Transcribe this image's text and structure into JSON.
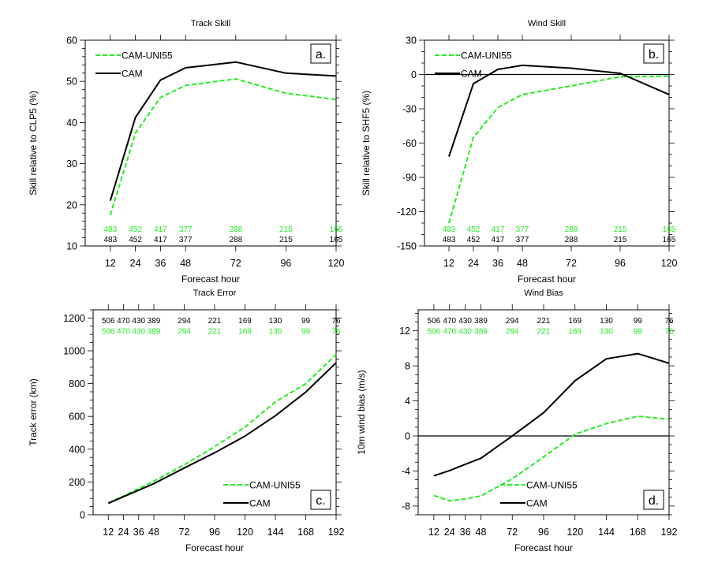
{
  "colors": {
    "cam": "#000000",
    "uni55": "#22ee22",
    "axis": "#000000"
  },
  "chart_data": [
    {
      "id": "a",
      "type": "line",
      "title": "Track Skill",
      "xlabel": "Forecast hour",
      "ylabel": "Skill relative to CLP5 (%)",
      "panel_label": "a.",
      "xlim": [
        0,
        120
      ],
      "ylim": [
        10,
        60
      ],
      "xticks": [
        12,
        24,
        36,
        48,
        72,
        96,
        120
      ],
      "yticks": [
        10,
        20,
        30,
        40,
        50,
        60
      ],
      "yminor": 2,
      "zero_line": false,
      "legend": {
        "position": "top-left",
        "entries": [
          "CAM-UNI55",
          "CAM"
        ]
      },
      "x": [
        12,
        24,
        36,
        48,
        72,
        96,
        120
      ],
      "series": [
        {
          "name": "CAM-UNI55",
          "style": "dashed",
          "values": [
            17.5,
            37.4,
            46.1,
            49.0,
            50.6,
            47.1,
            45.6
          ]
        },
        {
          "name": "CAM",
          "style": "solid",
          "values": [
            21.0,
            41.2,
            50.3,
            53.3,
            54.7,
            52.0,
            51.3
          ]
        }
      ],
      "counts": {
        "position": "bottom",
        "rows": [
          {
            "series": "CAM-UNI55",
            "values": [
              "483",
              "452",
              "417",
              "377",
              "288",
              "215",
              "165"
            ]
          },
          {
            "series": "CAM",
            "values": [
              "483",
              "452",
              "417",
              "377",
              "288",
              "215",
              "165"
            ]
          }
        ]
      }
    },
    {
      "id": "b",
      "type": "line",
      "title": "Wind Skill",
      "xlabel": "Forecast hour",
      "ylabel": "Skill relative to SHF5 (%)",
      "panel_label": "b.",
      "xlim": [
        0,
        120
      ],
      "ylim": [
        -150,
        30
      ],
      "xticks": [
        12,
        24,
        36,
        48,
        72,
        96,
        120
      ],
      "yticks": [
        -150,
        -120,
        -90,
        -60,
        -30,
        0,
        30
      ],
      "yminor": 10,
      "zero_line": true,
      "legend": {
        "position": "top-left",
        "entries": [
          "CAM-UNI55",
          "CAM"
        ]
      },
      "x": [
        12,
        24,
        36,
        48,
        72,
        96,
        120
      ],
      "series": [
        {
          "name": "CAM-UNI55",
          "style": "dashed",
          "values": [
            -130,
            -55,
            -29,
            -17.5,
            -10,
            -2,
            -1.5
          ]
        },
        {
          "name": "CAM",
          "style": "solid",
          "values": [
            -71.7,
            -8,
            4.5,
            8,
            5.5,
            1,
            -17.5
          ]
        }
      ],
      "counts": {
        "position": "bottom",
        "rows": [
          {
            "series": "CAM-UNI55",
            "values": [
              "483",
              "452",
              "417",
              "377",
              "288",
              "215",
              "165"
            ]
          },
          {
            "series": "CAM",
            "values": [
              "483",
              "452",
              "417",
              "377",
              "288",
              "215",
              "165"
            ]
          }
        ]
      }
    },
    {
      "id": "c",
      "type": "line",
      "title": "Track Error",
      "xlabel": "Forecast hour",
      "ylabel": "Track error (km)",
      "panel_label": "c.",
      "xlim": [
        0,
        192
      ],
      "ylim": [
        0,
        1250
      ],
      "xticks": [
        12,
        24,
        36,
        48,
        72,
        96,
        120,
        144,
        168,
        192
      ],
      "yticks": [
        0,
        200,
        400,
        600,
        800,
        1000,
        1200
      ],
      "yminor": 50,
      "zero_line": false,
      "legend": {
        "position": "bottom-right",
        "entries": [
          "CAM-UNI55",
          "CAM"
        ]
      },
      "x": [
        12,
        24,
        36,
        48,
        72,
        96,
        120,
        144,
        168,
        192
      ],
      "series": [
        {
          "name": "CAM-UNI55",
          "style": "dashed",
          "values": [
            72,
            115,
            160,
            205,
            305,
            415,
            535,
            688,
            799,
            978
          ]
        },
        {
          "name": "CAM",
          "style": "solid",
          "values": [
            70,
            110,
            150,
            190,
            285,
            378,
            480,
            604,
            748,
            927
          ]
        }
      ],
      "counts": {
        "position": "top",
        "rows": [
          {
            "series": "CAM",
            "values": [
              "506",
              "470",
              "430",
              "389",
              "294",
              "221",
              "169",
              "130",
              "99",
              "76"
            ]
          },
          {
            "series": "CAM-UNI55",
            "values": [
              "506",
              "470",
              "430",
              "389",
              "294",
              "221",
              "169",
              "130",
              "99",
              "76"
            ]
          }
        ]
      }
    },
    {
      "id": "d",
      "type": "line",
      "title": "Wind Bias",
      "xlabel": "Forecast hour",
      "ylabel": "10m wind bias (m/s)",
      "panel_label": "d.",
      "xlim": [
        0,
        192
      ],
      "ylim": [
        -9,
        14.4
      ],
      "xticks": [
        12,
        24,
        36,
        48,
        72,
        96,
        120,
        144,
        168,
        192
      ],
      "yticks": [
        -8,
        -4,
        0,
        4,
        8,
        12
      ],
      "yminor": 1,
      "zero_line": true,
      "legend": {
        "position": "bottom-right",
        "entries": [
          "CAM-UNI55",
          "CAM"
        ]
      },
      "x": [
        12,
        24,
        36,
        48,
        72,
        96,
        120,
        144,
        168,
        192
      ],
      "series": [
        {
          "name": "CAM-UNI55",
          "style": "dashed",
          "values": [
            -6.8,
            -7.4,
            -7.2,
            -6.85,
            -4.9,
            -2.4,
            0.2,
            1.4,
            2.25,
            1.9
          ]
        },
        {
          "name": "CAM",
          "style": "solid",
          "values": [
            -4.55,
            -3.95,
            -3.25,
            -2.55,
            0.0,
            2.65,
            6.3,
            8.8,
            9.4,
            8.3
          ]
        }
      ],
      "counts": {
        "position": "top",
        "rows": [
          {
            "series": "CAM",
            "values": [
              "506",
              "470",
              "430",
              "389",
              "294",
              "221",
              "169",
              "130",
              "99",
              "76"
            ]
          },
          {
            "series": "CAM-UNI55",
            "values": [
              "506",
              "470",
              "430",
              "389",
              "294",
              "221",
              "169",
              "130",
              "99",
              "76"
            ]
          }
        ]
      }
    }
  ]
}
